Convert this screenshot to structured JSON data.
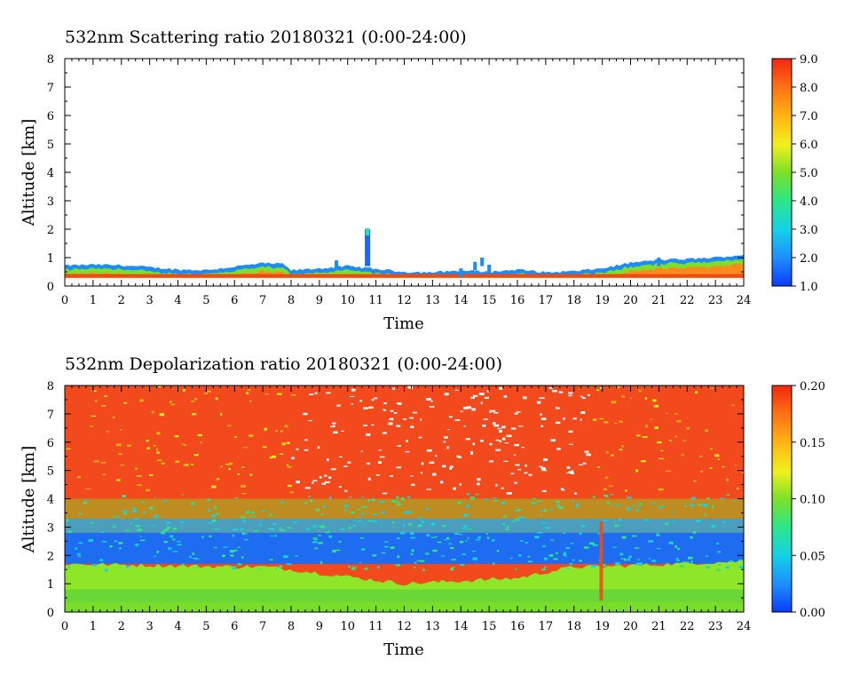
{
  "chart_data": [
    {
      "type": "heatmap",
      "title": "532nm Scattering ratio  20180321 (0:00-24:00)",
      "xlabel": "Time",
      "ylabel": "Altitude [km]",
      "xlim": [
        0,
        24
      ],
      "ylim": [
        0,
        8
      ],
      "xticks": [
        "0",
        "1",
        "2",
        "3",
        "4",
        "5",
        "6",
        "7",
        "8",
        "9",
        "10",
        "11",
        "12",
        "13",
        "14",
        "15",
        "16",
        "17",
        "18",
        "19",
        "20",
        "21",
        "22",
        "23",
        "24"
      ],
      "yticks": [
        "0",
        "1",
        "2",
        "3",
        "4",
        "5",
        "6",
        "7",
        "8"
      ],
      "colorbar": {
        "min": 1.0,
        "max": 9.0,
        "ticks": [
          "1.0",
          "2.0",
          "3.0",
          "4.0",
          "5.0",
          "6.0",
          "7.0",
          "8.0",
          "9.0"
        ]
      },
      "boundary_layer_top_km": [
        [
          0,
          0.72
        ],
        [
          1,
          0.75
        ],
        [
          2,
          0.73
        ],
        [
          3,
          0.66
        ],
        [
          4,
          0.58
        ],
        [
          5,
          0.56
        ],
        [
          6,
          0.68
        ],
        [
          7,
          0.8
        ],
        [
          7.7,
          0.78
        ],
        [
          8,
          0.55
        ],
        [
          9,
          0.62
        ],
        [
          10,
          0.7
        ],
        [
          11,
          0.6
        ],
        [
          12,
          0.5
        ],
        [
          13,
          0.48
        ],
        [
          14,
          0.55
        ],
        [
          15,
          0.5
        ],
        [
          16,
          0.58
        ],
        [
          17,
          0.48
        ],
        [
          18,
          0.52
        ],
        [
          19,
          0.62
        ],
        [
          20,
          0.82
        ],
        [
          21,
          0.92
        ],
        [
          22,
          0.95
        ],
        [
          23,
          1.0
        ],
        [
          24,
          1.1
        ]
      ],
      "features": [
        {
          "time": 10.7,
          "top_km": 2.0,
          "bottom_km": 0.7
        }
      ]
    },
    {
      "type": "heatmap",
      "title": "532nm Depolarization ratio  20180321 (0:00-24:00)",
      "xlabel": "Time",
      "ylabel": "Altitude [km]",
      "xlim": [
        0,
        24
      ],
      "ylim": [
        0,
        8
      ],
      "xticks": [
        "0",
        "1",
        "2",
        "3",
        "4",
        "5",
        "6",
        "7",
        "8",
        "9",
        "10",
        "11",
        "12",
        "13",
        "14",
        "15",
        "16",
        "17",
        "18",
        "19",
        "20",
        "21",
        "22",
        "23",
        "24"
      ],
      "yticks": [
        "0",
        "1",
        "2",
        "3",
        "4",
        "5",
        "6",
        "7",
        "8"
      ],
      "colorbar": {
        "min": 0.0,
        "max": 0.2,
        "ticks": [
          "0.00",
          "0.05",
          "0.10",
          "0.15",
          "0.20"
        ]
      },
      "low_depol_layer_km": [
        1.7,
        2.8
      ],
      "boundary_layer_top_km": [
        [
          0,
          1.7
        ],
        [
          6,
          1.6
        ],
        [
          7,
          1.6
        ],
        [
          8,
          1.5
        ],
        [
          12,
          1.0
        ],
        [
          16,
          1.2
        ],
        [
          18,
          1.6
        ],
        [
          19,
          1.6
        ],
        [
          24,
          1.8
        ]
      ]
    }
  ]
}
